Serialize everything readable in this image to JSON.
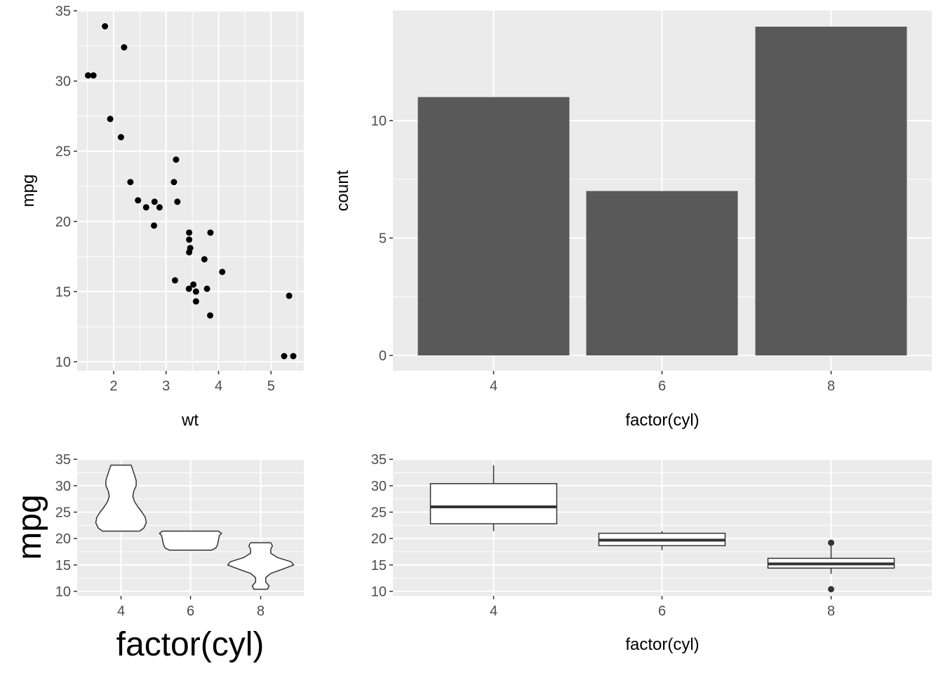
{
  "chart_data": [
    {
      "type": "scatter",
      "xlabel": "wt",
      "ylabel": "mpg",
      "xlim": [
        1.513,
        5.424
      ],
      "ylim": [
        10.4,
        33.9
      ],
      "x_ticks": [
        2,
        3,
        4,
        5
      ],
      "y_ticks": [
        10,
        15,
        20,
        25,
        30,
        35
      ],
      "points": [
        {
          "x": 2.62,
          "y": 21.0
        },
        {
          "x": 2.875,
          "y": 21.0
        },
        {
          "x": 2.32,
          "y": 22.8
        },
        {
          "x": 3.215,
          "y": 21.4
        },
        {
          "x": 3.44,
          "y": 18.7
        },
        {
          "x": 3.46,
          "y": 18.1
        },
        {
          "x": 3.57,
          "y": 14.3
        },
        {
          "x": 3.19,
          "y": 24.4
        },
        {
          "x": 3.15,
          "y": 22.8
        },
        {
          "x": 3.44,
          "y": 19.2
        },
        {
          "x": 3.44,
          "y": 17.8
        },
        {
          "x": 4.07,
          "y": 16.4
        },
        {
          "x": 3.73,
          "y": 17.3
        },
        {
          "x": 3.78,
          "y": 15.2
        },
        {
          "x": 5.25,
          "y": 10.4
        },
        {
          "x": 5.424,
          "y": 10.4
        },
        {
          "x": 5.345,
          "y": 14.7
        },
        {
          "x": 2.2,
          "y": 32.4
        },
        {
          "x": 1.615,
          "y": 30.4
        },
        {
          "x": 1.835,
          "y": 33.9
        },
        {
          "x": 2.465,
          "y": 21.5
        },
        {
          "x": 3.52,
          "y": 15.5
        },
        {
          "x": 3.435,
          "y": 15.2
        },
        {
          "x": 3.84,
          "y": 13.3
        },
        {
          "x": 3.845,
          "y": 19.2
        },
        {
          "x": 1.935,
          "y": 27.3
        },
        {
          "x": 2.14,
          "y": 26.0
        },
        {
          "x": 1.513,
          "y": 30.4
        },
        {
          "x": 3.17,
          "y": 15.8
        },
        {
          "x": 2.77,
          "y": 19.7
        },
        {
          "x": 3.57,
          "y": 15.0
        },
        {
          "x": 2.78,
          "y": 21.4
        }
      ]
    },
    {
      "type": "bar",
      "xlabel": "factor(cyl)",
      "ylabel": "count",
      "categories": [
        "4",
        "6",
        "8"
      ],
      "values": [
        11,
        7,
        14
      ],
      "ylim": [
        0,
        14
      ],
      "y_ticks": [
        0,
        5,
        10
      ],
      "bar_color": "#595959"
    },
    {
      "type": "violin",
      "xlabel": "factor(cyl)",
      "ylabel": "mpg",
      "categories": [
        "4",
        "6",
        "8"
      ],
      "y_ticks": [
        10,
        15,
        20,
        25,
        30,
        35
      ],
      "ylim": [
        10.4,
        33.9
      ],
      "groups": [
        {
          "name": "4",
          "min": 21.4,
          "max": 33.9,
          "profile": [
            [
              21.4,
              0.55
            ],
            [
              22.0,
              0.68
            ],
            [
              23.0,
              0.75
            ],
            [
              24.0,
              0.72
            ],
            [
              25.0,
              0.62
            ],
            [
              26.0,
              0.5
            ],
            [
              27.0,
              0.4
            ],
            [
              28.0,
              0.35
            ],
            [
              29.0,
              0.38
            ],
            [
              30.0,
              0.45
            ],
            [
              31.0,
              0.45
            ],
            [
              32.0,
              0.4
            ],
            [
              33.0,
              0.35
            ],
            [
              33.9,
              0.3
            ]
          ]
        },
        {
          "name": "6",
          "min": 17.8,
          "max": 21.4,
          "profile": [
            [
              17.8,
              0.62
            ],
            [
              18.2,
              0.75
            ],
            [
              18.8,
              0.8
            ],
            [
              19.4,
              0.82
            ],
            [
              20.0,
              0.84
            ],
            [
              20.6,
              0.86
            ],
            [
              21.0,
              0.92
            ],
            [
              21.4,
              0.83
            ]
          ]
        },
        {
          "name": "8",
          "min": 10.4,
          "max": 19.2,
          "profile": [
            [
              10.4,
              0.2
            ],
            [
              11.0,
              0.25
            ],
            [
              11.8,
              0.15
            ],
            [
              12.6,
              0.15
            ],
            [
              13.4,
              0.3
            ],
            [
              14.2,
              0.65
            ],
            [
              15.0,
              0.98
            ],
            [
              15.6,
              0.9
            ],
            [
              16.4,
              0.5
            ],
            [
              17.2,
              0.3
            ],
            [
              18.0,
              0.3
            ],
            [
              18.6,
              0.35
            ],
            [
              19.2,
              0.3
            ]
          ]
        }
      ]
    },
    {
      "type": "boxplot",
      "xlabel": "factor(cyl)",
      "ylabel": "",
      "categories": [
        "4",
        "6",
        "8"
      ],
      "y_ticks": [
        10,
        15,
        20,
        25,
        30,
        35
      ],
      "ylim": [
        10.4,
        33.9
      ],
      "boxes": [
        {
          "name": "4",
          "lower_whisker": 21.4,
          "q1": 22.8,
          "median": 26.0,
          "q3": 30.4,
          "upper_whisker": 33.9,
          "outliers": []
        },
        {
          "name": "6",
          "lower_whisker": 17.8,
          "q1": 18.65,
          "median": 19.7,
          "q3": 21.0,
          "upper_whisker": 21.4,
          "outliers": []
        },
        {
          "name": "8",
          "lower_whisker": 13.3,
          "q1": 14.4,
          "median": 15.2,
          "q3": 16.25,
          "upper_whisker": 18.7,
          "outliers": [
            10.4,
            19.2
          ]
        }
      ]
    }
  ]
}
